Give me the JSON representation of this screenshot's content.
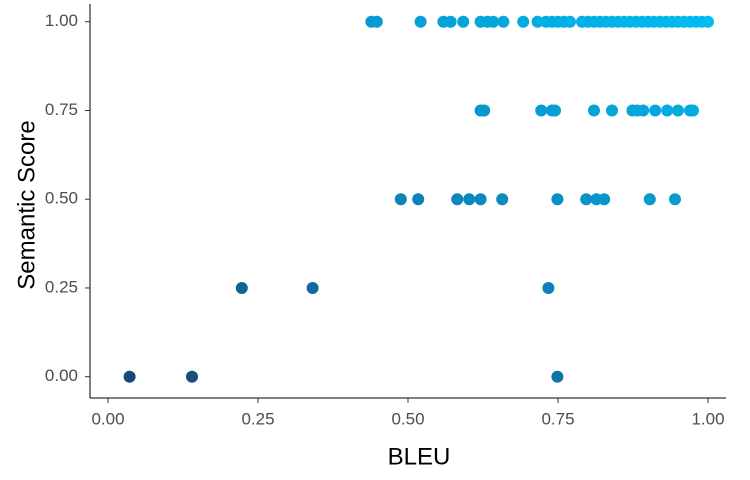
{
  "chart_data": {
    "type": "scatter",
    "x_label": "BLEU",
    "y_label": "Semantic Score",
    "x": [
      0.036,
      0.14,
      0.749,
      0.223,
      0.341,
      0.734,
      0.488,
      0.517,
      0.582,
      0.602,
      0.621,
      0.657,
      0.749,
      0.797,
      0.814,
      0.827,
      0.903,
      0.945,
      0.621,
      0.627,
      0.722,
      0.74,
      0.745,
      0.81,
      0.84,
      0.874,
      0.882,
      0.892,
      0.912,
      0.932,
      0.95,
      0.97,
      0.975,
      0.439,
      0.448,
      0.521,
      0.559,
      0.571,
      0.592,
      0.621,
      0.632,
      0.642,
      0.659,
      0.692,
      0.716,
      0.73,
      0.74,
      0.75,
      0.76,
      0.77,
      0.79,
      0.8,
      0.81,
      0.82,
      0.83,
      0.84,
      0.85,
      0.86,
      0.87,
      0.88,
      0.89,
      0.9,
      0.91,
      0.92,
      0.93,
      0.94,
      0.95,
      0.96,
      0.97,
      0.98,
      0.99,
      1.0
    ],
    "values": [
      0,
      0,
      0,
      0.25,
      0.25,
      0.25,
      0.5,
      0.5,
      0.5,
      0.5,
      0.5,
      0.5,
      0.5,
      0.5,
      0.5,
      0.5,
      0.5,
      0.5,
      0.75,
      0.75,
      0.75,
      0.75,
      0.75,
      0.75,
      0.75,
      0.75,
      0.75,
      0.75,
      0.75,
      0.75,
      0.75,
      0.75,
      0.75,
      1,
      1,
      1,
      1,
      1,
      1,
      1,
      1,
      1,
      1,
      1,
      1,
      1,
      1,
      1,
      1,
      1,
      1,
      1,
      1,
      1,
      1,
      1,
      1,
      1,
      1,
      1,
      1,
      1,
      1,
      1,
      1,
      1,
      1,
      1,
      1,
      1,
      1,
      1
    ],
    "color_low": "#164a7c",
    "color_high": "#00bcf2",
    "xlim": [
      -0.03,
      1.03
    ],
    "ylim": [
      -0.06,
      1.05
    ],
    "xticks": [
      {
        "value": 0,
        "label": "0.00"
      },
      {
        "value": 0.25,
        "label": "0.25"
      },
      {
        "value": 0.5,
        "label": "0.50"
      },
      {
        "value": 0.75,
        "label": "0.75"
      },
      {
        "value": 1,
        "label": "1.00"
      }
    ],
    "yticks": [
      {
        "value": 0,
        "label": "0.00"
      },
      {
        "value": 0.25,
        "label": "0.25"
      },
      {
        "value": 0.5,
        "label": "0.50"
      },
      {
        "value": 0.75,
        "label": "0.75"
      },
      {
        "value": 1,
        "label": "1.00"
      }
    ],
    "grid": false
  }
}
